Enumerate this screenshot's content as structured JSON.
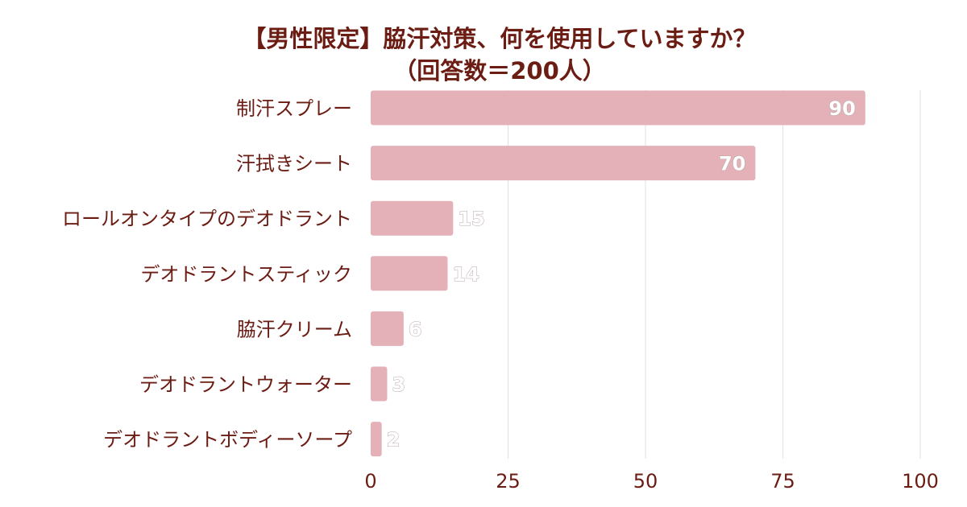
{
  "chart_data": {
    "type": "bar",
    "orientation": "horizontal",
    "title_lines": [
      "【男性限定】脇汗対策、何を使用していますか？",
      "（回答数＝200人）"
    ],
    "categories": [
      "制汗スプレー",
      "汗拭きシート",
      "ロールオンタイプのデオドラント",
      "デオドラントスティック",
      "脇汗クリーム",
      "デオドラントウォーター",
      "デオドラントボディーソープ"
    ],
    "values": [
      90,
      70,
      15,
      14,
      6,
      3,
      2
    ],
    "xlim": [
      0,
      100
    ],
    "xticks": [
      0,
      25,
      50,
      75,
      100
    ],
    "xlabel": "",
    "ylabel": "",
    "grid": true,
    "legend": "none",
    "bar_color": "#e4b1b8",
    "text_color": "#6b1c13"
  }
}
